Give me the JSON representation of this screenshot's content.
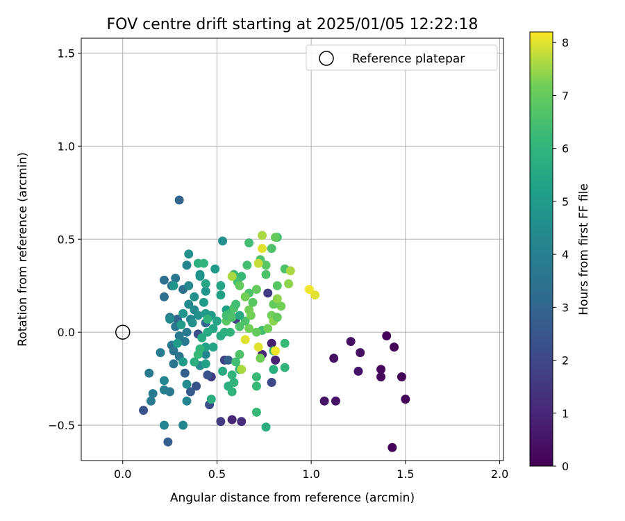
{
  "chart_data": {
    "type": "scatter",
    "title": "FOV centre drift starting at 2025/01/05 12:22:18",
    "xlabel": "Angular distance from reference (arcmin)",
    "ylabel": "Rotation from reference (arcmin)",
    "xlim": [
      -0.22,
      2.02
    ],
    "ylim": [
      -0.69,
      1.58
    ],
    "xticks": [
      0.0,
      0.5,
      1.0,
      1.5,
      2.0
    ],
    "xtick_labels": [
      "0.0",
      "0.5",
      "1.0",
      "1.5",
      "2.0"
    ],
    "yticks": [
      -0.5,
      0.0,
      0.5,
      1.0,
      1.5
    ],
    "ytick_labels": [
      "−0.5",
      "0.0",
      "0.5",
      "1.0",
      "1.5"
    ],
    "grid": true,
    "legend": {
      "placement": "top-right",
      "entries": [
        "Reference platepar"
      ]
    },
    "reference_point": {
      "x": 0.0,
      "y": 0.0
    },
    "colorbar": {
      "label": "Hours from first FF file",
      "colormap": "viridis",
      "range": [
        0,
        8.2
      ],
      "ticks": [
        0,
        1,
        2,
        3,
        4,
        5,
        6,
        7,
        8
      ],
      "tick_labels": [
        "0",
        "1",
        "2",
        "3",
        "4",
        "5",
        "6",
        "7",
        "8"
      ]
    },
    "series": [
      {
        "points": [
          [
            1.4,
            -0.02,
            0.1
          ],
          [
            1.44,
            -0.08,
            0.1
          ],
          [
            1.48,
            -0.24,
            0.1
          ],
          [
            1.5,
            -0.36,
            0.1
          ],
          [
            1.37,
            -0.2,
            0.2
          ],
          [
            1.37,
            -0.24,
            0.2
          ],
          [
            1.43,
            -0.62,
            0.1
          ],
          [
            1.21,
            -0.05,
            0.4
          ],
          [
            1.26,
            -0.11,
            0.4
          ],
          [
            1.12,
            -0.14,
            0.4
          ],
          [
            1.25,
            -0.21,
            0.5
          ],
          [
            1.07,
            -0.37,
            0.5
          ],
          [
            1.13,
            -0.37,
            0.5
          ],
          [
            0.79,
            -0.06,
            0.8
          ],
          [
            0.81,
            -0.15,
            0.9
          ],
          [
            0.74,
            -0.12,
            1.0
          ],
          [
            0.58,
            -0.47,
            1.0
          ],
          [
            0.63,
            -0.48,
            1.2
          ],
          [
            0.52,
            -0.48,
            1.6
          ],
          [
            0.54,
            -0.15,
            1.8
          ],
          [
            0.47,
            -0.24,
            1.6
          ],
          [
            0.79,
            -0.27,
            2.0
          ],
          [
            0.46,
            -0.39,
            2.2
          ],
          [
            0.6,
            0.07,
            1.8
          ],
          [
            0.77,
            0.21,
            1.6
          ],
          [
            0.4,
            -0.01,
            2.2
          ],
          [
            0.39,
            -0.29,
            2.4
          ],
          [
            0.45,
            -0.23,
            2.4
          ],
          [
            0.36,
            -0.32,
            2.6
          ],
          [
            0.56,
            -0.15,
            2.8
          ],
          [
            0.3,
            0.71,
            3.0
          ],
          [
            0.11,
            -0.42,
            2.4
          ],
          [
            0.24,
            -0.59,
            2.8
          ],
          [
            0.33,
            -0.22,
            2.8
          ],
          [
            0.44,
            0.05,
            3.0
          ],
          [
            0.29,
            0.07,
            3.0
          ],
          [
            0.22,
            0.28,
            3.4
          ],
          [
            0.22,
            0.19,
            3.4
          ],
          [
            0.26,
            0.25,
            3.4
          ],
          [
            0.28,
            0.29,
            3.6
          ],
          [
            0.32,
            0.23,
            3.4
          ],
          [
            0.25,
            0.08,
            3.6
          ],
          [
            0.28,
            0.03,
            3.6
          ],
          [
            0.34,
            0.0,
            3.8
          ],
          [
            0.3,
            -0.02,
            3.8
          ],
          [
            0.26,
            -0.07,
            3.6
          ],
          [
            0.33,
            -0.05,
            3.8
          ],
          [
            0.27,
            -0.1,
            3.6
          ],
          [
            0.3,
            -0.13,
            3.6
          ],
          [
            0.27,
            -0.17,
            3.6
          ],
          [
            0.2,
            -0.11,
            3.8
          ],
          [
            0.14,
            -0.22,
            3.8
          ],
          [
            0.16,
            -0.33,
            3.8
          ],
          [
            0.15,
            -0.37,
            3.8
          ],
          [
            0.25,
            -0.32,
            3.8
          ],
          [
            0.22,
            -0.31,
            4.0
          ],
          [
            0.22,
            -0.26,
            4.2
          ],
          [
            0.22,
            -0.5,
            4.2
          ],
          [
            0.32,
            -0.5,
            4.2
          ],
          [
            0.34,
            -0.37,
            4.2
          ],
          [
            0.34,
            -0.28,
            4.4
          ],
          [
            0.41,
            -0.18,
            4.4
          ],
          [
            0.44,
            -0.12,
            4.2
          ],
          [
            0.36,
            0.07,
            4.2
          ],
          [
            0.25,
            0.07,
            4.4
          ],
          [
            0.35,
            0.15,
            4.4
          ],
          [
            0.34,
            0.36,
            4.2
          ],
          [
            0.35,
            0.42,
            4.6
          ],
          [
            0.35,
            0.25,
            4.4
          ],
          [
            0.38,
            0.19,
            4.6
          ],
          [
            0.38,
            0.12,
            4.4
          ],
          [
            0.37,
            0.05,
            4.6
          ],
          [
            0.4,
            0.09,
            4.6
          ],
          [
            0.32,
            0.1,
            4.8
          ],
          [
            0.27,
            0.25,
            4.8
          ],
          [
            0.41,
            0.3,
            4.8
          ],
          [
            0.41,
            0.31,
            4.8
          ],
          [
            0.44,
            0.22,
            4.8
          ],
          [
            0.43,
            0.16,
            5.0
          ],
          [
            0.44,
            0.1,
            5.0
          ],
          [
            0.47,
            0.09,
            5.0
          ],
          [
            0.31,
            0.04,
            5.0
          ],
          [
            0.29,
            -0.06,
            5.0
          ],
          [
            0.32,
            -0.16,
            5.0
          ],
          [
            0.44,
            -0.17,
            5.2
          ],
          [
            0.44,
            -0.08,
            5.2
          ],
          [
            0.53,
            0.49,
            4.6
          ],
          [
            0.49,
            0.34,
            5.0
          ],
          [
            0.44,
            0.26,
            5.4
          ],
          [
            0.52,
            0.2,
            5.2
          ],
          [
            0.52,
            0.25,
            5.4
          ],
          [
            0.55,
            0.12,
            5.2
          ],
          [
            0.5,
            0.06,
            5.4
          ],
          [
            0.48,
            0.02,
            5.4
          ],
          [
            0.52,
            -0.02,
            5.6
          ],
          [
            0.48,
            -0.08,
            5.4
          ],
          [
            0.47,
            -0.36,
            5.8
          ],
          [
            0.53,
            -0.21,
            5.6
          ],
          [
            0.58,
            -0.23,
            6.0
          ],
          [
            0.56,
            -0.29,
            5.8
          ],
          [
            0.58,
            -0.32,
            6.0
          ],
          [
            0.59,
            -0.27,
            6.0
          ],
          [
            0.62,
            -0.2,
            6.0
          ],
          [
            0.71,
            -0.24,
            6.2
          ],
          [
            0.71,
            -0.29,
            6.2
          ],
          [
            0.76,
            -0.51,
            5.8
          ],
          [
            0.71,
            -0.43,
            6.2
          ],
          [
            0.8,
            -0.2,
            5.8
          ],
          [
            0.86,
            -0.19,
            6.0
          ],
          [
            0.86,
            -0.06,
            6.2
          ],
          [
            0.8,
            -0.1,
            6.2
          ],
          [
            0.74,
            0.01,
            6.4
          ],
          [
            0.65,
            0.06,
            6.6
          ],
          [
            0.62,
            0.03,
            6.6
          ],
          [
            0.57,
            0.1,
            6.4
          ],
          [
            0.55,
            0.06,
            6.8
          ],
          [
            0.59,
            0.13,
            6.6
          ],
          [
            0.6,
            0.15,
            6.4
          ],
          [
            0.63,
            0.3,
            6.2
          ],
          [
            0.59,
            0.31,
            6.2
          ],
          [
            0.61,
            0.27,
            6.4
          ],
          [
            0.67,
            0.21,
            6.6
          ],
          [
            0.69,
            0.16,
            6.8
          ],
          [
            0.71,
            0.23,
            7.0
          ],
          [
            0.62,
            0.25,
            7.0
          ],
          [
            0.66,
            0.36,
            6.4
          ],
          [
            0.67,
            0.48,
            6.4
          ],
          [
            0.73,
            0.39,
            6.6
          ],
          [
            0.76,
            0.36,
            6.8
          ],
          [
            0.76,
            0.31,
            6.6
          ],
          [
            0.79,
            0.45,
            6.6
          ],
          [
            0.82,
            0.51,
            6.4
          ],
          [
            0.86,
            0.34,
            6.6
          ],
          [
            0.82,
            0.25,
            6.8
          ],
          [
            0.8,
            0.15,
            7.0
          ],
          [
            0.84,
            0.14,
            7.2
          ],
          [
            0.82,
            0.18,
            7.4
          ],
          [
            0.79,
            0.09,
            7.2
          ],
          [
            0.8,
            0.06,
            7.4
          ],
          [
            0.82,
            0.08,
            7.0
          ],
          [
            0.71,
            0.0,
            7.0
          ],
          [
            0.67,
            0.02,
            7.2
          ],
          [
            0.68,
            0.09,
            7.2
          ],
          [
            0.67,
            0.12,
            7.2
          ],
          [
            0.65,
            0.19,
            7.2
          ],
          [
            0.58,
            0.3,
            7.6
          ],
          [
            0.72,
            0.37,
            7.8
          ],
          [
            0.74,
            0.45,
            8.0
          ],
          [
            0.74,
            0.52,
            7.6
          ],
          [
            0.81,
            0.51,
            7.0
          ],
          [
            0.88,
            0.26,
            7.4
          ],
          [
            0.89,
            0.33,
            7.6
          ],
          [
            0.77,
            0.02,
            7.2
          ],
          [
            0.72,
            -0.08,
            8.0
          ],
          [
            0.73,
            -0.14,
            7.2
          ],
          [
            0.81,
            -0.1,
            8.1
          ],
          [
            0.65,
            -0.04,
            8.0
          ],
          [
            0.99,
            0.23,
            8.1
          ],
          [
            1.02,
            0.2,
            8.0
          ],
          [
            0.62,
            -0.12,
            6.6
          ],
          [
            0.6,
            -0.16,
            6.4
          ],
          [
            0.63,
            -0.2,
            7.6
          ],
          [
            0.41,
            -0.09,
            6.0
          ],
          [
            0.38,
            -0.16,
            5.8
          ],
          [
            0.4,
            -0.12,
            6.2
          ],
          [
            0.4,
            0.37,
            5.8
          ],
          [
            0.43,
            0.37,
            6.0
          ],
          [
            0.45,
            0.07,
            6.0
          ],
          [
            0.45,
            0.0,
            5.6
          ],
          [
            0.42,
            -0.03,
            5.6
          ],
          [
            0.57,
            0.0,
            6.0
          ],
          [
            0.54,
            0.0,
            5.8
          ],
          [
            0.55,
            0.09,
            6.4
          ],
          [
            0.58,
            0.08,
            6.6
          ],
          [
            0.62,
            0.09,
            5.6
          ]
        ]
      }
    ]
  }
}
